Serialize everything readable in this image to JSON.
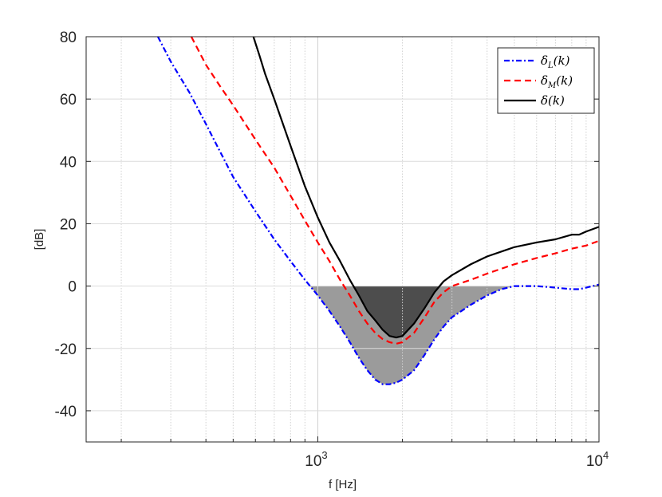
{
  "chart_data": {
    "type": "line",
    "title": "",
    "xlabel": "f [Hz]",
    "ylabel": "[dB]",
    "xscale": "log",
    "xlim": [
      150,
      10000
    ],
    "ylim": [
      -50,
      80
    ],
    "grid": true,
    "legend_position": "top-right",
    "yticks": [
      {
        "value": 80,
        "label": "80"
      },
      {
        "value": 60,
        "label": "60"
      },
      {
        "value": 40,
        "label": "40"
      },
      {
        "value": 20,
        "label": "20"
      },
      {
        "value": 0,
        "label": "0"
      },
      {
        "value": -20,
        "label": "-20"
      },
      {
        "value": -40,
        "label": "-40"
      }
    ],
    "xticks": [
      {
        "value": 1000,
        "base": "10",
        "exp": "3"
      },
      {
        "value": 10000,
        "base": "10",
        "exp": "4"
      }
    ],
    "series": [
      {
        "name": "δ_L(k)",
        "label_main": "δ",
        "label_sub": "L",
        "label_tail": "(k)",
        "color": "#0000ff",
        "dash": "dashdot",
        "x": [
          270,
          300,
          350,
          400,
          450,
          500,
          600,
          700,
          800,
          900,
          1000,
          1100,
          1200,
          1300,
          1400,
          1500,
          1600,
          1700,
          1800,
          1900,
          2000,
          2200,
          2400,
          2600,
          2800,
          3000,
          3500,
          4000,
          4500,
          5000,
          6000,
          7000,
          8000,
          8500,
          9000,
          10000
        ],
        "y": [
          80,
          72,
          62,
          52,
          43,
          35,
          24,
          15,
          8,
          2,
          -3,
          -8,
          -13,
          -18,
          -23,
          -27,
          -30,
          -31.5,
          -31.5,
          -31,
          -30,
          -27,
          -22,
          -17,
          -13,
          -10,
          -6,
          -3,
          -1,
          0,
          0,
          -0.5,
          -1,
          -1,
          -0.5,
          0.5
        ]
      },
      {
        "name": "δ_M(k)",
        "label_main": "δ",
        "label_sub": "M",
        "label_tail": "(k)",
        "color": "#ff0000",
        "dash": "dashed",
        "x": [
          355,
          400,
          450,
          500,
          600,
          700,
          800,
          900,
          1000,
          1100,
          1200,
          1300,
          1400,
          1500,
          1600,
          1700,
          1800,
          1900,
          2000,
          2200,
          2400,
          2600,
          2800,
          3000,
          3500,
          4000,
          5000,
          6000,
          7000,
          8000,
          9000,
          10000
        ],
        "y": [
          80,
          71,
          64,
          58,
          47,
          38,
          29,
          21,
          14,
          8,
          2,
          -3,
          -8,
          -12,
          -15,
          -17,
          -18,
          -18.5,
          -18,
          -15,
          -10,
          -5,
          -2,
          0,
          2,
          4,
          7,
          9,
          10.5,
          12,
          13,
          14.5
        ]
      },
      {
        "name": "δ(k)",
        "label_main": "δ",
        "label_sub": "",
        "label_tail": "(k)",
        "color": "#000000",
        "dash": "solid",
        "x": [
          590,
          620,
          650,
          700,
          800,
          900,
          1000,
          1100,
          1200,
          1300,
          1400,
          1500,
          1600,
          1700,
          1800,
          1900,
          2000,
          2200,
          2400,
          2600,
          2800,
          3000,
          3500,
          4000,
          5000,
          6000,
          7000,
          8000,
          8500,
          9000,
          10000
        ],
        "y": [
          80,
          74,
          68,
          60,
          45,
          32,
          22,
          14,
          8,
          2,
          -3,
          -8,
          -11,
          -14,
          -16,
          -16.5,
          -16,
          -12,
          -7,
          -2,
          1.5,
          3.5,
          7,
          9.5,
          12.5,
          14,
          15,
          16.5,
          16.5,
          17.5,
          19
        ]
      }
    ],
    "shaded_regions": [
      {
        "name": "light-gray-fill",
        "color": "#9b9b9b",
        "description_series": "δ_L(k)",
        "range": [
          920,
          4950
        ]
      },
      {
        "name": "dark-gray-fill",
        "color": "#4d4d4d",
        "description_series": "δ(k)",
        "range": [
          1300,
          2800
        ]
      }
    ]
  }
}
